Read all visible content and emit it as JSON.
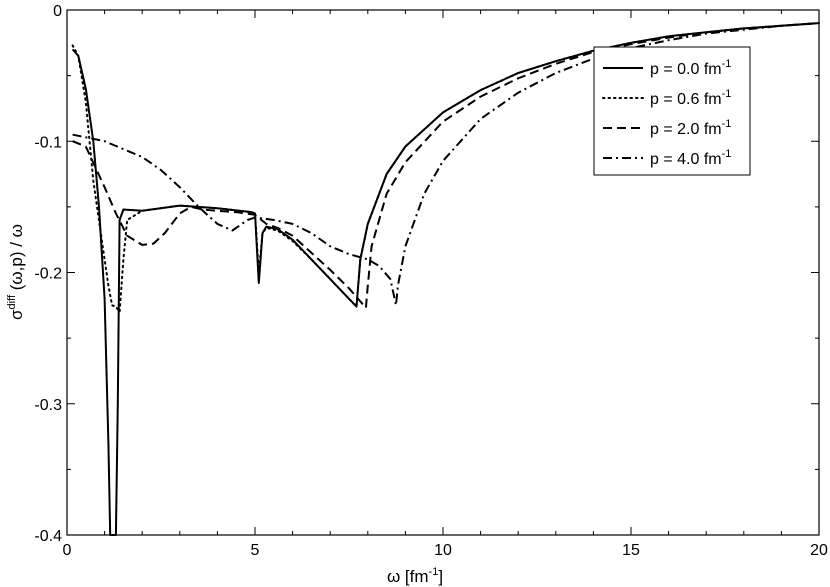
{
  "chart_data": {
    "type": "line",
    "title": "",
    "xlabel": {
      "base": "ω [fm",
      "sup": "-1",
      "tail": "]"
    },
    "ylabel": {
      "base": "σ",
      "sup": "diff",
      "tail": " (ω,p) / ω"
    },
    "xlim": [
      0,
      20
    ],
    "ylim": [
      -0.4,
      0
    ],
    "x_ticks": [
      0,
      5,
      10,
      15,
      20
    ],
    "x_tick_labels": [
      "0",
      "5",
      "10",
      "15",
      "20"
    ],
    "y_ticks": [
      -0.4,
      -0.3,
      -0.2,
      -0.1,
      0
    ],
    "y_tick_labels": [
      "-0.4",
      "-0.3",
      "-0.2",
      "-0.1",
      "0"
    ],
    "grid": false,
    "legend_position": "top-right",
    "series": [
      {
        "name": "p = 0.0 fm-1",
        "label": {
          "base": "p = 0.0 fm",
          "sup": "-1"
        },
        "style": "solid",
        "color": "#000000",
        "x": [
          0.15,
          0.3,
          0.5,
          0.7,
          0.85,
          1.0,
          1.1,
          1.15,
          1.2,
          1.25,
          1.3,
          1.35,
          1.4,
          1.5,
          2.0,
          3.0,
          4.0,
          4.9,
          5.0,
          5.1,
          5.2,
          5.3,
          5.6,
          6.0,
          6.5,
          7.0,
          7.5,
          7.7,
          7.8,
          8.0,
          8.5,
          9.0,
          10.0,
          11.0,
          12.0,
          13.0,
          14.0,
          15.0,
          16.0,
          17.0,
          18.0,
          19.0,
          20.0
        ],
        "y": [
          -0.03,
          -0.035,
          -0.06,
          -0.1,
          -0.15,
          -0.22,
          -0.33,
          -0.4,
          -0.4,
          -0.4,
          -0.4,
          -0.3,
          -0.16,
          -0.152,
          -0.153,
          -0.149,
          -0.151,
          -0.154,
          -0.155,
          -0.208,
          -0.17,
          -0.165,
          -0.167,
          -0.175,
          -0.19,
          -0.205,
          -0.22,
          -0.226,
          -0.19,
          -0.163,
          -0.125,
          -0.104,
          -0.078,
          -0.061,
          -0.048,
          -0.039,
          -0.031,
          -0.025,
          -0.02,
          -0.017,
          -0.014,
          -0.012,
          -0.01
        ]
      },
      {
        "name": "p = 0.6 fm-1",
        "label": {
          "base": "p = 0.6 fm",
          "sup": "-1"
        },
        "style": "dotted",
        "color": "#000000",
        "x": [
          0.15,
          0.3,
          0.5,
          0.7,
          0.9,
          1.1,
          1.2,
          1.3,
          1.4,
          1.5,
          1.6,
          2.0,
          3.0,
          4.0,
          4.9,
          5.0,
          5.1,
          5.2,
          5.3,
          5.6,
          6.0,
          6.5,
          7.0,
          7.5,
          7.7,
          7.8,
          8.0,
          8.5,
          9.0,
          10.0,
          11.0,
          12.0,
          13.0,
          14.0,
          15.0,
          16.0,
          17.0,
          18.0,
          19.0,
          20.0
        ],
        "y": [
          -0.027,
          -0.035,
          -0.07,
          -0.13,
          -0.17,
          -0.21,
          -0.225,
          -0.226,
          -0.23,
          -0.19,
          -0.16,
          -0.153,
          -0.149,
          -0.151,
          -0.154,
          -0.155,
          -0.2,
          -0.17,
          -0.166,
          -0.168,
          -0.176,
          -0.19,
          -0.205,
          -0.22,
          -0.226,
          -0.19,
          -0.163,
          -0.125,
          -0.104,
          -0.078,
          -0.061,
          -0.048,
          -0.039,
          -0.031,
          -0.025,
          -0.02,
          -0.017,
          -0.014,
          -0.012,
          -0.01
        ]
      },
      {
        "name": "p = 2.0 fm-1",
        "label": {
          "base": "p = 2.0 fm",
          "sup": "-1"
        },
        "style": "dashed",
        "color": "#000000",
        "x": [
          0.15,
          0.5,
          1.0,
          1.3,
          1.6,
          2.0,
          2.3,
          2.6,
          3.0,
          3.3,
          3.6,
          4.0,
          4.5,
          5.0,
          5.3,
          5.6,
          6.0,
          6.5,
          7.0,
          7.5,
          7.8,
          7.95,
          8.0,
          8.1,
          8.5,
          9.0,
          10.0,
          11.0,
          12.0,
          13.0,
          14.0,
          15.0,
          16.0,
          17.0,
          18.0,
          19.0,
          20.0
        ],
        "y": [
          -0.1,
          -0.104,
          -0.135,
          -0.155,
          -0.172,
          -0.179,
          -0.178,
          -0.17,
          -0.155,
          -0.15,
          -0.152,
          -0.153,
          -0.154,
          -0.156,
          -0.163,
          -0.166,
          -0.172,
          -0.185,
          -0.198,
          -0.212,
          -0.222,
          -0.227,
          -0.21,
          -0.18,
          -0.14,
          -0.116,
          -0.085,
          -0.066,
          -0.052,
          -0.041,
          -0.032,
          -0.026,
          -0.021,
          -0.017,
          -0.014,
          -0.012,
          -0.01
        ]
      },
      {
        "name": "p = 4.0 fm-1",
        "label": {
          "base": "p = 4.0 fm",
          "sup": "-1"
        },
        "style": "dashdot",
        "color": "#000000",
        "x": [
          0.15,
          0.5,
          1.0,
          1.5,
          2.0,
          2.5,
          3.0,
          3.5,
          4.0,
          4.4,
          4.8,
          5.0,
          5.5,
          6.0,
          6.5,
          7.0,
          7.5,
          8.0,
          8.3,
          8.6,
          8.75,
          8.8,
          9.0,
          9.5,
          10.0,
          11.0,
          12.0,
          13.0,
          14.0,
          15.0,
          16.0,
          17.0,
          18.0,
          19.0,
          20.0
        ],
        "y": [
          -0.095,
          -0.097,
          -0.1,
          -0.106,
          -0.112,
          -0.122,
          -0.135,
          -0.15,
          -0.163,
          -0.168,
          -0.16,
          -0.158,
          -0.16,
          -0.163,
          -0.17,
          -0.18,
          -0.186,
          -0.19,
          -0.195,
          -0.205,
          -0.225,
          -0.21,
          -0.18,
          -0.14,
          -0.115,
          -0.083,
          -0.063,
          -0.048,
          -0.037,
          -0.029,
          -0.023,
          -0.018,
          -0.015,
          -0.012,
          -0.01
        ]
      }
    ]
  }
}
